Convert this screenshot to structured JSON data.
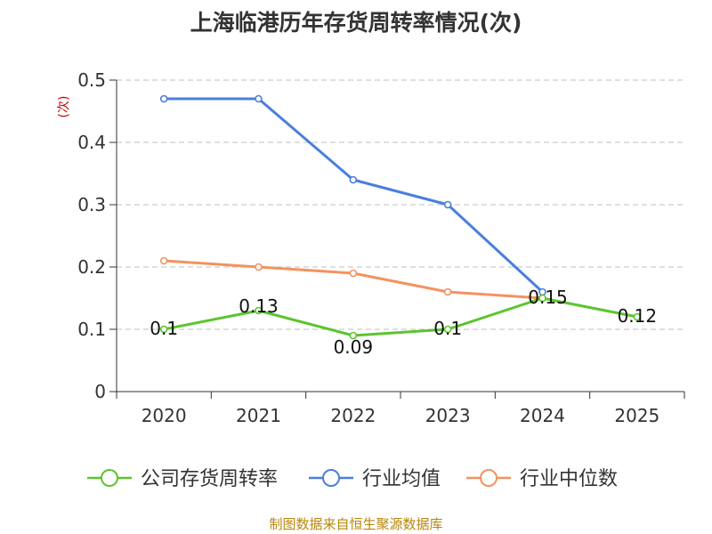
{
  "chart_data": {
    "type": "line",
    "title": "上海临港历年存货周转率情况(次)",
    "ylabel": "(次)",
    "xlabel": "",
    "categories": [
      "2020",
      "2021",
      "2022",
      "2023",
      "2024",
      "2025"
    ],
    "ylim": [
      0,
      0.5
    ],
    "yticks": [
      "0",
      "0.1",
      "0.2",
      "0.3",
      "0.4",
      "0.5"
    ],
    "grid": true,
    "legend_position": "bottom",
    "series": [
      {
        "name": "公司存货周转率",
        "color": "#5cc42e",
        "values": [
          0.1,
          0.13,
          0.09,
          0.1,
          0.15,
          0.12
        ],
        "data_labels": [
          "0.1",
          "0.13",
          "0.09",
          "0.1",
          "0.15",
          "0.12"
        ]
      },
      {
        "name": "行业均值",
        "color": "#4a7fdc",
        "values": [
          0.47,
          0.47,
          0.34,
          0.3,
          0.16,
          null
        ]
      },
      {
        "name": "行业中位数",
        "color": "#f4925f",
        "values": [
          0.21,
          0.2,
          0.19,
          0.16,
          0.15,
          null
        ]
      }
    ]
  },
  "source_note": "制图数据来自恒生聚源数据库",
  "colors": {
    "ylabel": "#cc0000",
    "axis": "#333333",
    "grid": "#cccccc",
    "source": "#b8860b"
  }
}
